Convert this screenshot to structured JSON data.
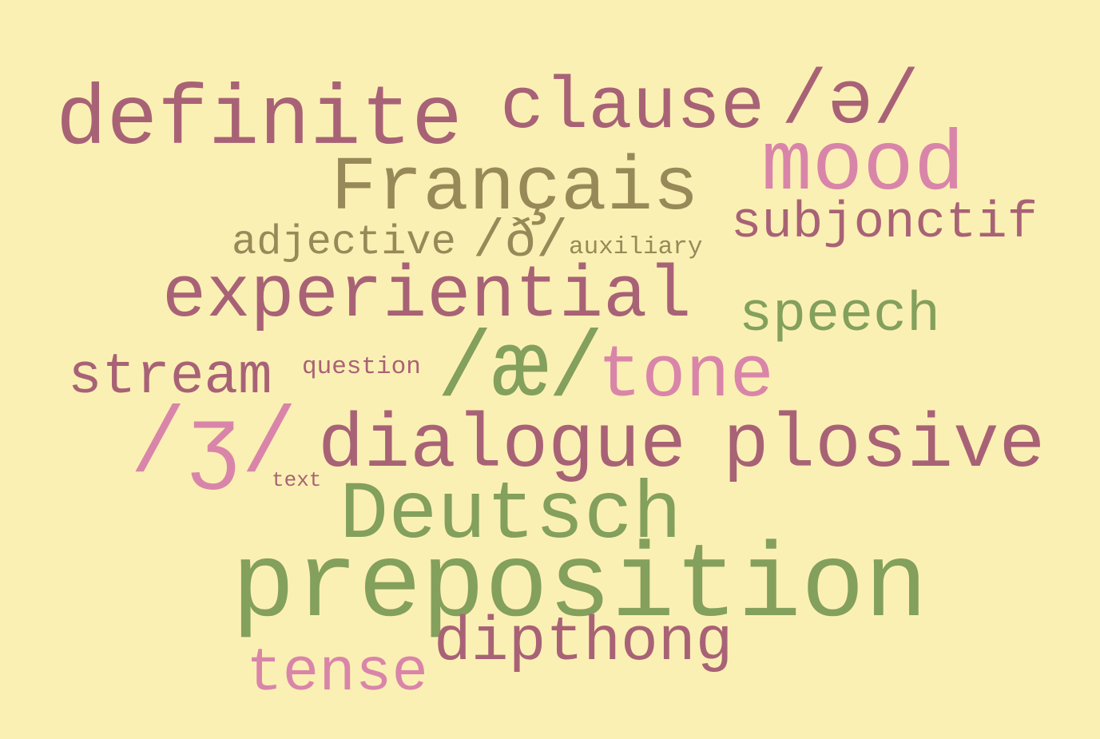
{
  "colors": {
    "background": "#FBF0B4",
    "mauve": "#A86276",
    "pink": "#D985A9",
    "green": "#83A05C",
    "olive": "#978A58"
  },
  "words": {
    "definite": "definite",
    "clause": "clause",
    "schwa": "/ə/",
    "mood": "mood",
    "francais": "Français",
    "subjonctif": "subjonctif",
    "adjective": "adjective",
    "eth": "/ð/",
    "auxiliary": "auxiliary",
    "experiential": "experiential",
    "speech": "speech",
    "stream": "stream",
    "question": "question",
    "ash": "/æ/",
    "tone": "tone",
    "ezh": "/ʒ/",
    "dialogue": "dialogue",
    "plosive": "plosive",
    "text": "text",
    "deutsch": "Deutsch",
    "preposition": "preposition",
    "dipthong": "dipthong",
    "tense": "tense"
  }
}
